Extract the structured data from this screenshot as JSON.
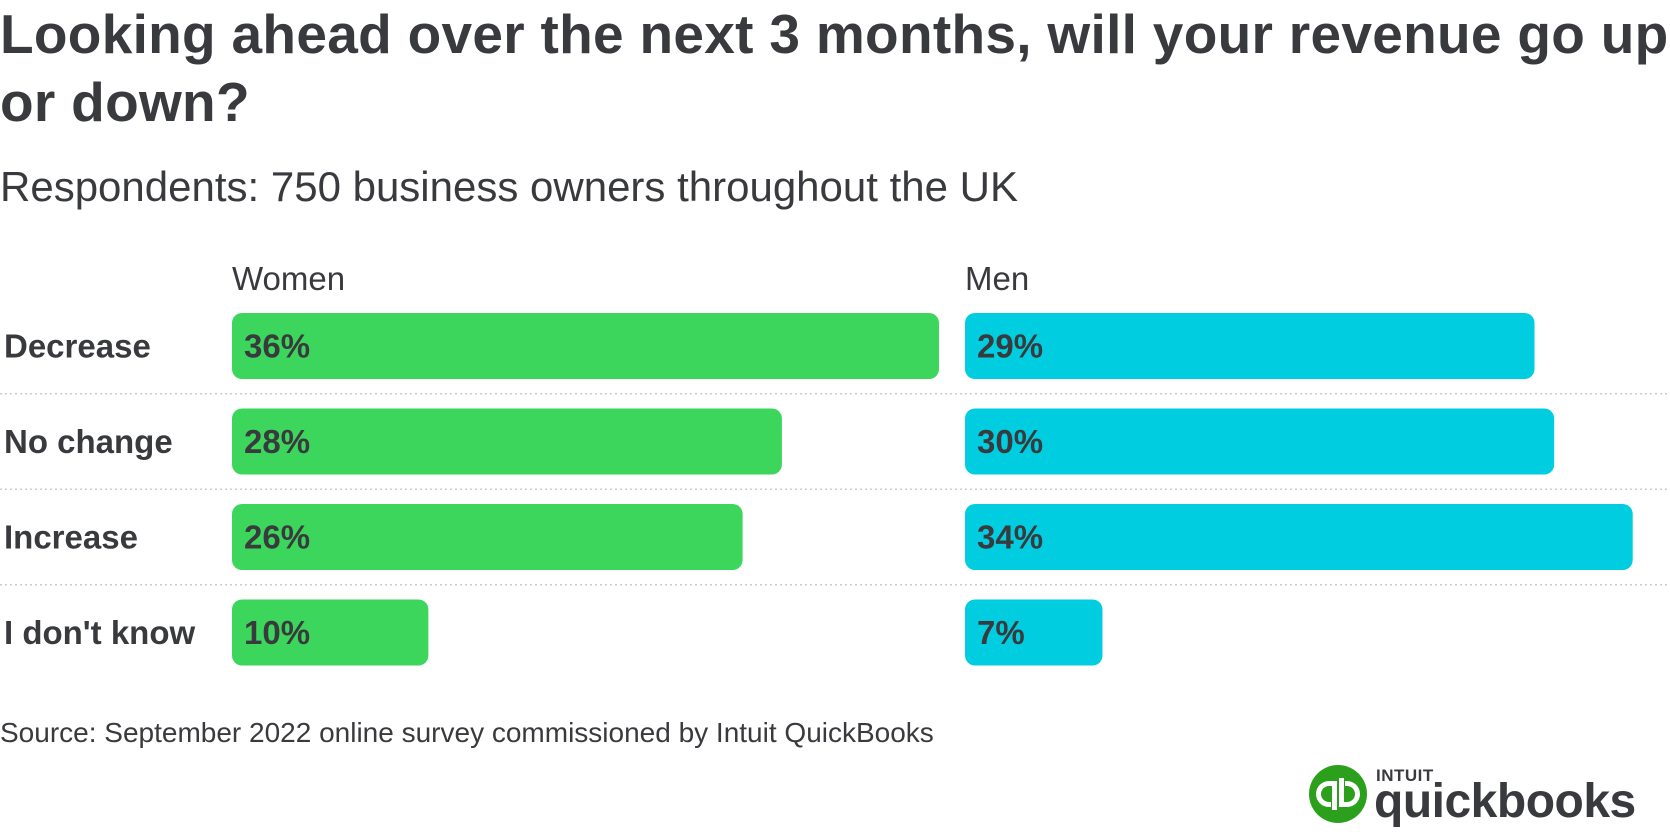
{
  "title": "Looking ahead over the next 3 months, will your revenue go up or down?",
  "subtitle": "Respondents: 750 business owners throughout the UK",
  "source": "Source: September 2022 online survey commissioned by Intuit QuickBooks",
  "logo": {
    "brand": "INTUIT",
    "wordmark": "quickbooks",
    "mark_color": "#2ca01c"
  },
  "colors": {
    "women": "#3dd65c",
    "men": "#00cee0",
    "text": "#393a3d",
    "divider": "#cccccc"
  },
  "chart_data": {
    "type": "bar",
    "orientation": "horizontal",
    "title": "Looking ahead over the next 3 months, will your revenue go up or down?",
    "subtitle": "Respondents: 750 business owners throughout the UK",
    "categories": [
      "Decrease",
      "No change",
      "Increase",
      "I don't know"
    ],
    "series": [
      {
        "name": "Women",
        "values": [
          36,
          28,
          26,
          10
        ],
        "labels": [
          "36%",
          "28%",
          "26%",
          "10%"
        ],
        "color": "#3dd65c"
      },
      {
        "name": "Men",
        "values": [
          29,
          30,
          34,
          7
        ],
        "labels": [
          "29%",
          "30%",
          "34%",
          "7%"
        ],
        "color": "#00cee0"
      }
    ],
    "unit": "%",
    "xlim": [
      0,
      36
    ],
    "grid": false,
    "legend": "none"
  }
}
